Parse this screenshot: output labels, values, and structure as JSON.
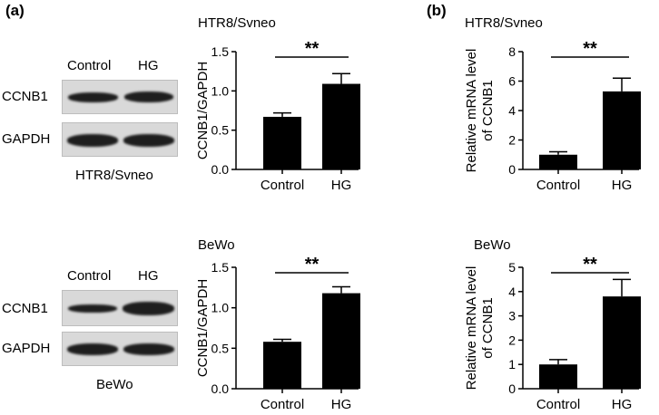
{
  "panels": {
    "a": "(a)",
    "b": "(b)"
  },
  "blots": [
    {
      "cell_line": "HTR8/Svneo",
      "lanes": [
        "Control",
        "HG"
      ],
      "rows": [
        "CCNB1",
        "GAPDH"
      ]
    },
    {
      "cell_line": "BeWo",
      "lanes": [
        "Control",
        "HG"
      ],
      "rows": [
        "CCNB1",
        "GAPDH"
      ]
    }
  ],
  "chart_data": [
    {
      "type": "bar",
      "title": "HTR8/Svneo",
      "ylabel": "CCNB1/GAPDH",
      "xlabel": "",
      "categories": [
        "Control",
        "HG"
      ],
      "values": [
        0.67,
        1.09
      ],
      "errors": [
        0.05,
        0.13
      ],
      "ylim": [
        0,
        1.5
      ],
      "yticks": [
        "0.0",
        "0.5",
        "1.0",
        "1.5"
      ],
      "significance": "**"
    },
    {
      "type": "bar",
      "title": "BeWo",
      "ylabel": "CCNB1/GAPDH",
      "xlabel": "",
      "categories": [
        "Control",
        "HG"
      ],
      "values": [
        0.58,
        1.18
      ],
      "errors": [
        0.03,
        0.08
      ],
      "ylim": [
        0,
        1.5
      ],
      "yticks": [
        "0.0",
        "0.5",
        "1.0",
        "1.5"
      ],
      "significance": "**"
    },
    {
      "type": "bar",
      "title": "HTR8/Svneo",
      "ylabel_lines": [
        "Relative mRNA level",
        "of CCNB1"
      ],
      "xlabel": "",
      "categories": [
        "Control",
        "HG"
      ],
      "values": [
        1.0,
        5.3
      ],
      "errors": [
        0.2,
        0.9
      ],
      "ylim": [
        0,
        8
      ],
      "yticks": [
        "0",
        "2",
        "4",
        "6",
        "8"
      ],
      "significance": "**"
    },
    {
      "type": "bar",
      "title": "BeWo",
      "ylabel_lines": [
        "Relative mRNA level",
        "of CCNB1"
      ],
      "xlabel": "",
      "categories": [
        "Control",
        "HG"
      ],
      "values": [
        1.0,
        3.8
      ],
      "errors": [
        0.2,
        0.7
      ],
      "ylim": [
        0,
        5
      ],
      "yticks": [
        "0",
        "1",
        "2",
        "3",
        "4",
        "5"
      ],
      "significance": "**"
    }
  ]
}
